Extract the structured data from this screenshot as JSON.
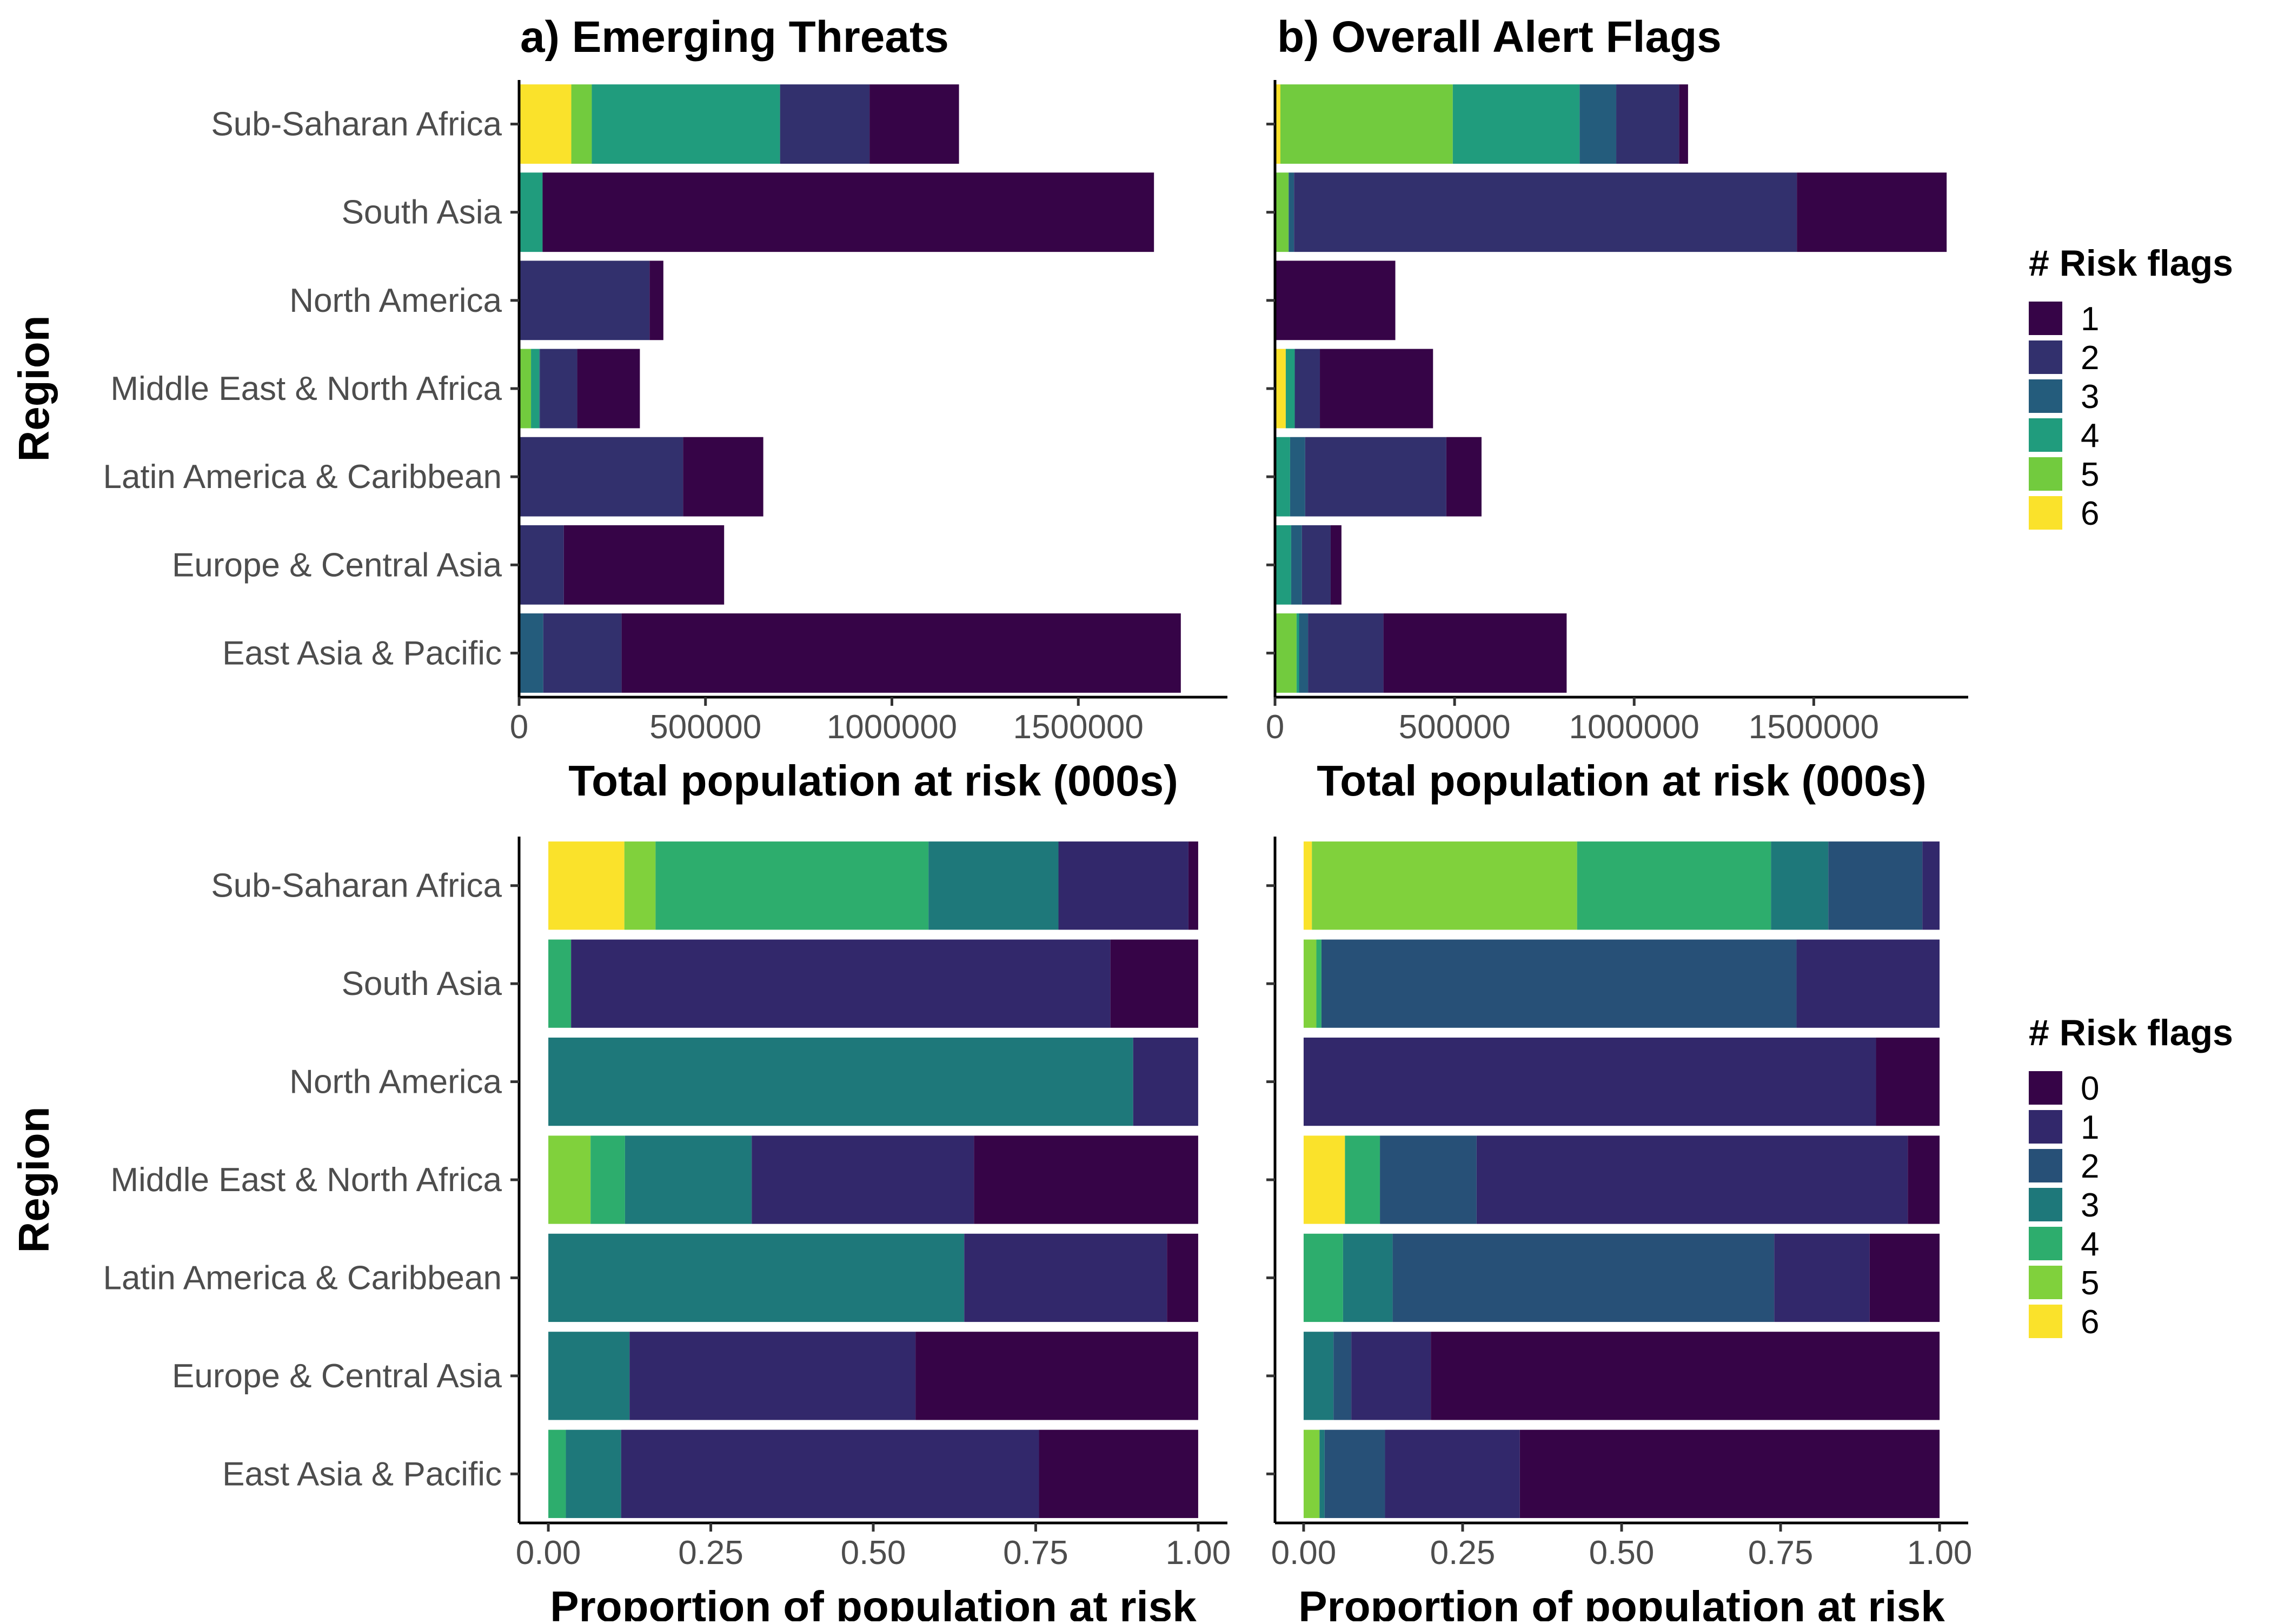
{
  "chart_data": {
    "type": "bar",
    "orientation": "horizontal",
    "stacked": true,
    "regions": [
      "East Asia & Pacific",
      "Europe & Central Asia",
      "Latin America & Caribbean",
      "Middle East & North Africa",
      "North America",
      "South Asia",
      "Sub-Saharan Africa"
    ],
    "panels": [
      {
        "id": "top-left",
        "title": "a) Emerging Threats",
        "xlabel": "Total population at risk (000s)",
        "ylabel": "Region",
        "xlim": [
          0,
          1900000
        ],
        "xticks": [
          0,
          500000,
          1000000,
          1500000
        ],
        "xtick_labels": [
          "0",
          "500000",
          "1000000",
          "1500000"
        ],
        "legend_key": "upper",
        "bars": [
          [
            {
              "cat": "3",
              "value": 65000
            },
            {
              "cat": "2",
              "value": 210000
            },
            {
              "cat": "1",
              "value": 1500000
            }
          ],
          [
            {
              "cat": "2",
              "value": 120000
            },
            {
              "cat": "1",
              "value": 430000
            }
          ],
          [
            {
              "cat": "2",
              "value": 440000
            },
            {
              "cat": "1",
              "value": 215000
            }
          ],
          [
            {
              "cat": "5",
              "value": 32000
            },
            {
              "cat": "4",
              "value": 22000
            },
            {
              "cat": "3",
              "value": 2000
            },
            {
              "cat": "2",
              "value": 100000
            },
            {
              "cat": "1",
              "value": 168000
            }
          ],
          [
            {
              "cat": "2",
              "value": 350000
            },
            {
              "cat": "1",
              "value": 37000
            }
          ],
          [
            {
              "cat": "4",
              "value": 63000
            },
            {
              "cat": "1",
              "value": 1640000
            }
          ],
          [
            {
              "cat": "6",
              "value": 140000
            },
            {
              "cat": "5",
              "value": 55000
            },
            {
              "cat": "4",
              "value": 505000
            },
            {
              "cat": "2",
              "value": 240000
            },
            {
              "cat": "1",
              "value": 240000
            }
          ]
        ]
      },
      {
        "id": "top-right",
        "title": "b) Overall Alert Flags",
        "xlabel": "Total population at risk (000s)",
        "ylabel": "",
        "xlim": [
          0,
          1930000
        ],
        "xticks": [
          0,
          500000,
          1000000,
          1500000
        ],
        "xtick_labels": [
          "0",
          "500000",
          "1000000",
          "1500000"
        ],
        "legend_key": "upper",
        "bars": [
          [
            {
              "cat": "5",
              "value": 60000
            },
            {
              "cat": "4",
              "value": 7000
            },
            {
              "cat": "3",
              "value": 25000
            },
            {
              "cat": "2",
              "value": 210000
            },
            {
              "cat": "1",
              "value": 510000
            }
          ],
          [
            {
              "cat": "4",
              "value": 45000
            },
            {
              "cat": "3",
              "value": 30000
            },
            {
              "cat": "2",
              "value": 80000
            },
            {
              "cat": "1",
              "value": 30000
            }
          ],
          [
            {
              "cat": "4",
              "value": 42000
            },
            {
              "cat": "3",
              "value": 42000
            },
            {
              "cat": "2",
              "value": 393000
            },
            {
              "cat": "1",
              "value": 98000
            }
          ],
          [
            {
              "cat": "6",
              "value": 30000
            },
            {
              "cat": "4",
              "value": 25000
            },
            {
              "cat": "2",
              "value": 70000
            },
            {
              "cat": "1",
              "value": 315000
            }
          ],
          [
            {
              "cat": "1",
              "value": 335000
            }
          ],
          [
            {
              "cat": "5",
              "value": 38000
            },
            {
              "cat": "3",
              "value": 15000
            },
            {
              "cat": "2",
              "value": 1400000
            },
            {
              "cat": "1",
              "value": 417000
            }
          ],
          [
            {
              "cat": "6",
              "value": 15000
            },
            {
              "cat": "5",
              "value": 480000
            },
            {
              "cat": "4",
              "value": 353000
            },
            {
              "cat": "3",
              "value": 102000
            },
            {
              "cat": "2",
              "value": 175000
            },
            {
              "cat": "1",
              "value": 25000
            }
          ]
        ]
      },
      {
        "id": "bottom-left",
        "title": "",
        "xlabel": "Proportion of population at risk",
        "ylabel": "Region",
        "xlim": [
          -0.045,
          1.045
        ],
        "xticks": [
          0,
          0.25,
          0.5,
          0.75,
          1
        ],
        "xtick_labels": [
          "0.00",
          "0.25",
          "0.50",
          "0.75",
          "1.00"
        ],
        "legend_key": "lower",
        "bars": [
          [
            {
              "cat": "4",
              "value": 0.027
            },
            {
              "cat": "3",
              "value": 0.085
            },
            {
              "cat": "1",
              "value": 0.643
            },
            {
              "cat": "0",
              "value": 0.245
            }
          ],
          [
            {
              "cat": "3",
              "value": 0.125
            },
            {
              "cat": "1",
              "value": 0.44
            },
            {
              "cat": "0",
              "value": 0.435
            }
          ],
          [
            {
              "cat": "3",
              "value": 0.64
            },
            {
              "cat": "1",
              "value": 0.312
            },
            {
              "cat": "0",
              "value": 0.048
            }
          ],
          [
            {
              "cat": "5",
              "value": 0.065
            },
            {
              "cat": "4",
              "value": 0.053
            },
            {
              "cat": "3",
              "value": 0.195
            },
            {
              "cat": "1",
              "value": 0.342
            },
            {
              "cat": "0",
              "value": 0.345
            }
          ],
          [
            {
              "cat": "3",
              "value": 0.9
            },
            {
              "cat": "1",
              "value": 0.1
            }
          ],
          [
            {
              "cat": "4",
              "value": 0.035
            },
            {
              "cat": "1",
              "value": 0.83
            },
            {
              "cat": "0",
              "value": 0.135
            }
          ],
          [
            {
              "cat": "6",
              "value": 0.117
            },
            {
              "cat": "5",
              "value": 0.048
            },
            {
              "cat": "4",
              "value": 0.42
            },
            {
              "cat": "3",
              "value": 0.2
            },
            {
              "cat": "1",
              "value": 0.2
            },
            {
              "cat": "0",
              "value": 0.015
            }
          ]
        ]
      },
      {
        "id": "bottom-right",
        "title": "",
        "xlabel": "Proportion of population at risk",
        "ylabel": "",
        "xlim": [
          -0.045,
          1.045
        ],
        "xticks": [
          0,
          0.25,
          0.5,
          0.75,
          1
        ],
        "xtick_labels": [
          "0.00",
          "0.25",
          "0.50",
          "0.75",
          "1.00"
        ],
        "legend_key": "lower",
        "bars": [
          [
            {
              "cat": "5",
              "value": 0.025
            },
            {
              "cat": "3",
              "value": 0.008
            },
            {
              "cat": "2",
              "value": 0.095
            },
            {
              "cat": "1",
              "value": 0.212
            },
            {
              "cat": "0",
              "value": 0.66
            }
          ],
          [
            {
              "cat": "3",
              "value": 0.047
            },
            {
              "cat": "2",
              "value": 0.028
            },
            {
              "cat": "1",
              "value": 0.125
            },
            {
              "cat": "0",
              "value": 0.8
            }
          ],
          [
            {
              "cat": "4",
              "value": 0.062
            },
            {
              "cat": "3",
              "value": 0.078
            },
            {
              "cat": "2",
              "value": 0.6
            },
            {
              "cat": "1",
              "value": 0.15
            },
            {
              "cat": "0",
              "value": 0.11
            }
          ],
          [
            {
              "cat": "6",
              "value": 0.065
            },
            {
              "cat": "4",
              "value": 0.055
            },
            {
              "cat": "2",
              "value": 0.152
            },
            {
              "cat": "1",
              "value": 0.678
            },
            {
              "cat": "0",
              "value": 0.05
            }
          ],
          [
            {
              "cat": "1",
              "value": 0.9
            },
            {
              "cat": "0",
              "value": 0.1
            }
          ],
          [
            {
              "cat": "5",
              "value": 0.02
            },
            {
              "cat": "4",
              "value": 0.008
            },
            {
              "cat": "2",
              "value": 0.747
            },
            {
              "cat": "1",
              "value": 0.225
            }
          ],
          [
            {
              "cat": "6",
              "value": 0.013
            },
            {
              "cat": "5",
              "value": 0.417
            },
            {
              "cat": "4",
              "value": 0.305
            },
            {
              "cat": "3",
              "value": 0.09
            },
            {
              "cat": "2",
              "value": 0.148
            },
            {
              "cat": "1",
              "value": 0.027
            }
          ]
        ]
      }
    ],
    "legends": {
      "upper": {
        "title": "# Risk flags",
        "entries": [
          {
            "label": "1",
            "color": "#360447"
          },
          {
            "label": "2",
            "color": "#32306d"
          },
          {
            "label": "3",
            "color": "#245c7c"
          },
          {
            "label": "4",
            "color": "#209c7d"
          },
          {
            "label": "5",
            "color": "#72cb3e"
          },
          {
            "label": "6",
            "color": "#fae22b"
          }
        ]
      },
      "lower": {
        "title": "# Risk flags",
        "entries": [
          {
            "label": "0",
            "color": "#360447"
          },
          {
            "label": "1",
            "color": "#32286b"
          },
          {
            "label": "2",
            "color": "#275077"
          },
          {
            "label": "3",
            "color": "#1e787a"
          },
          {
            "label": "4",
            "color": "#2dad6d"
          },
          {
            "label": "5",
            "color": "#80d13c"
          },
          {
            "label": "6",
            "color": "#fae22b"
          }
        ]
      }
    }
  }
}
